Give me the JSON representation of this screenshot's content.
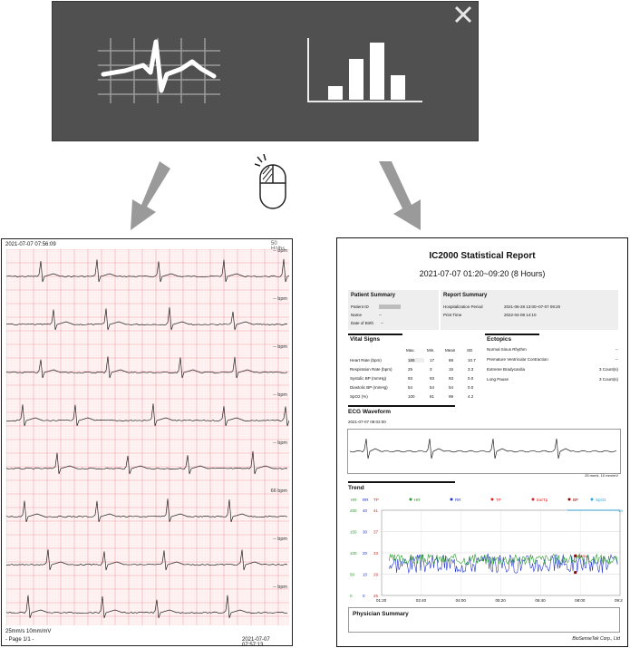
{
  "sheet": {
    "timestamp": "2021-07-07 07:56:09",
    "calibration": "50 Hz/hs",
    "bpm_labels": [
      "-- bpm",
      "-- bpm",
      "-- bpm",
      "-- bpm",
      "-- bpm",
      "66 bpm",
      "-- bpm",
      "-- bpm"
    ],
    "footer_speed": "25mm/s  10mm/mV",
    "footer_page": "- Page 1/1 -",
    "footer_end_time": "2021-07-07 07:57:13"
  },
  "report": {
    "title": "IC2000 Statistical Report",
    "time_range": "2021-07-07 01:20~09:20 (8 Hours)",
    "patient_summary": {
      "heading": "Patient Summary",
      "patient_id_label": "Patient ID",
      "name_label": "Name",
      "name_value": "--",
      "dob_label": "Date of Birth",
      "dob_value": "--"
    },
    "report_summary": {
      "heading": "Report Summary",
      "period_label": "Hospitalization Period",
      "period_value": "2021-06-28 13:00~07-07 09:20",
      "print_label": "Print Time",
      "print_value": "2022-04-08 14:10"
    },
    "vital_signs": {
      "heading": "Vital Signs",
      "columns": [
        "Max.",
        "Min.",
        "Mean",
        "SD"
      ],
      "rows": [
        {
          "label": "Heart Rate (bpm)",
          "max": "165",
          "min": "17",
          "mean": "88",
          "sd": "10.7"
        },
        {
          "label": "Respiration Rate (bpm)",
          "max": "25",
          "min": "3",
          "mean": "15",
          "sd": "3.3"
        },
        {
          "label": "Systolic BP (mmHg)",
          "max": "93",
          "min": "93",
          "mean": "93",
          "sd": "0.0"
        },
        {
          "label": "Diastolic BP (mmHg)",
          "max": "54",
          "min": "54",
          "mean": "54",
          "sd": "0.0"
        },
        {
          "label": "SpO2 (%)",
          "max": "100",
          "min": "81",
          "mean": "99",
          "sd": "4.2"
        }
      ]
    },
    "ectopics": {
      "heading": "Ectopics",
      "rows": [
        {
          "label": "Normal Sinus Rhythm",
          "value": "--"
        },
        {
          "label": "Premature Ventricular Contraction",
          "value": "--"
        },
        {
          "label": "Extreme Bradycardia",
          "value": "3 Count(s)"
        },
        {
          "label": "Long Pause",
          "value": "3 Count(s)"
        }
      ]
    },
    "ecg_waveform": {
      "heading": "ECG Waveform",
      "timestamp": "2021-07-07 09:02:00",
      "scale": "25 mm/s, 10 mm/mV"
    },
    "trend": {
      "heading": "Trend",
      "axis_headers": [
        "HR",
        "RR",
        "TP"
      ],
      "legend": [
        "HR",
        "RR",
        "TP",
        "EarTp",
        "BP",
        "SpO2"
      ],
      "hr_ticks": [
        "200",
        "150",
        "100",
        "50",
        "0"
      ],
      "rr_ticks": [
        "40",
        "30",
        "20",
        "10",
        "0"
      ],
      "tp_ticks": [
        "41",
        "37",
        "33",
        "29",
        "25"
      ],
      "spo2_tick": "100",
      "bp_annotation": "93/54",
      "x_ticks": [
        "01:20",
        "02:40",
        "04:00",
        "05:20",
        "06:40",
        "08:00",
        "09:20"
      ]
    },
    "physician_summary": "Physician Summary",
    "footer": "BioSenseTek Corp., Ltd"
  },
  "colors": {
    "panel": "#505050",
    "arrow": "#9a9a9a",
    "grid_major": "#f19aa0",
    "grid_minor": "#fbdadc",
    "hr": "#2a9a2a",
    "rr": "#2233cc",
    "tp": "#dd2222",
    "spo2": "#27a8e0"
  }
}
